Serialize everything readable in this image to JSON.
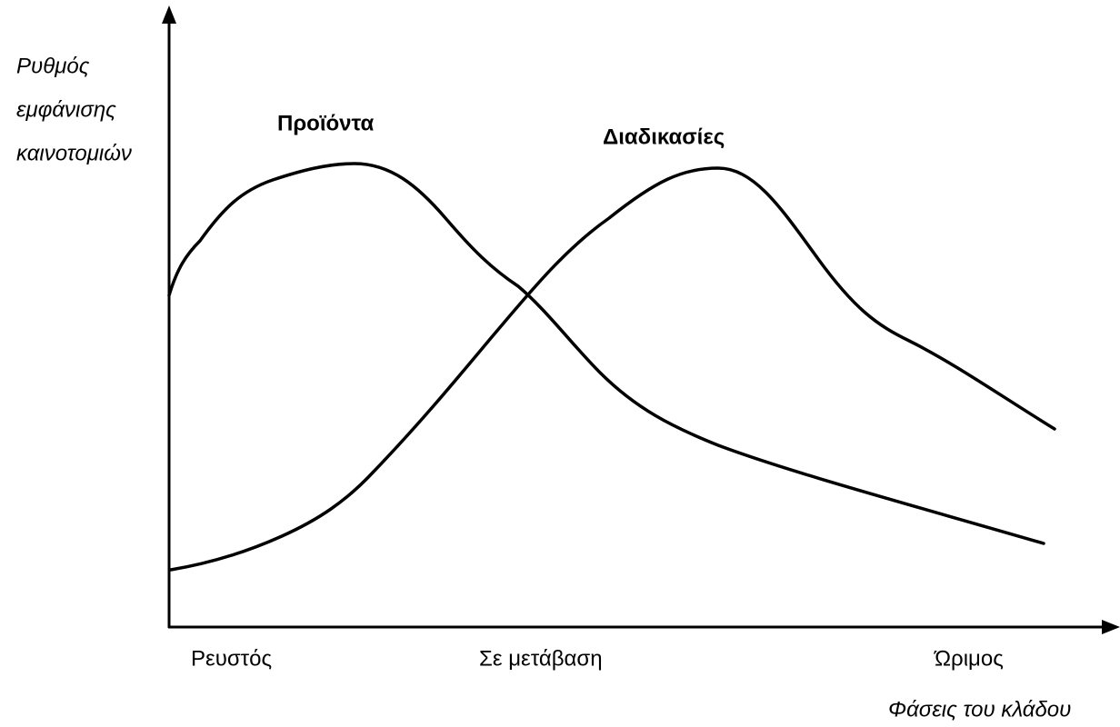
{
  "y_axis_label": {
    "lines": [
      "Ρυθμός",
      "εμφάνισης",
      "καινοτομιών"
    ]
  },
  "curves": [
    {
      "label": "Προϊόντα"
    },
    {
      "label": "Διαδικασίες"
    }
  ],
  "phases": [
    "Ρευστός",
    "Σε μετάβαση",
    "Ώριμος"
  ],
  "x_axis_label": "Φάσεις του κλάδου"
}
